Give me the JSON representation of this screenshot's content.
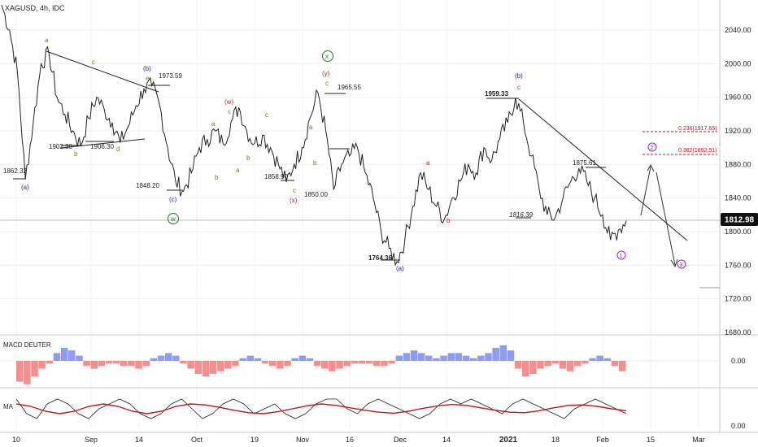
{
  "symbol_header": "XAGUSD, 4h, IDC",
  "colors": {
    "price_line": "#222222",
    "trend_line": "#222222",
    "wave_blue": "#2a2ab0",
    "wave_red": "#d02020",
    "wave_olive": "#7a7a1a",
    "wave_green": "#2a7a2a",
    "wave_purple": "#a020d0",
    "fib_red": "#c02030",
    "macd_pos": "#6a7af0",
    "macd_neg": "#f06a6a",
    "ma_red": "#c01818",
    "last_price_bg": "#111111",
    "grid": "#e8e8e8",
    "divider": "#c8c8c8"
  },
  "chart_data": [
    {
      "type": "line",
      "title": "XAGUSD, 4h, IDC",
      "xlabel": "",
      "ylabel": "",
      "ylim": [
        1660,
        2080
      ],
      "x_ticks": [
        "10",
        "Sep",
        "14",
        "Oct",
        "19",
        "Nov",
        "16",
        "Dec",
        "14",
        "2021",
        "18",
        "Feb",
        "15",
        "Mar"
      ],
      "y_ticks": [
        "2040.00",
        "2000.00",
        "1960.00",
        "1920.00",
        "1880.00",
        "1840.00",
        "1800.00",
        "1760.00",
        "1720.00",
        "1680.00"
      ],
      "last_price": "1812.98",
      "series": [
        {
          "values": [
            2070,
            2040,
            1990,
            1862.32,
            1930,
            2000,
            2012,
            1960,
            1940,
            1920,
            1903,
            1935,
            1960,
            1945,
            1930,
            1906,
            1925,
            1950,
            1970,
            1973.59,
            1950,
            1900,
            1860,
            1848.2,
            1870,
            1900,
            1910,
            1920,
            1905,
            1930,
            1948,
            1920,
            1905,
            1915,
            1900,
            1880,
            1858.9,
            1880,
            1900,
            1935,
            1965.55,
            1920,
            1850,
            1880,
            1890,
            1900,
            1870,
            1840,
            1800,
            1780,
            1764.36,
            1790,
            1830,
            1870,
            1850,
            1830,
            1815,
            1840,
            1860,
            1880,
            1870,
            1900,
            1885,
            1910,
            1930,
            1959.33,
            1930,
            1890,
            1850,
            1820,
            1816.39,
            1840,
            1860,
            1875.61,
            1860,
            1840,
            1820,
            1790,
            1802,
            1812.98
          ]
        }
      ],
      "annotations": [
        {
          "text": "1862.32",
          "value": 1862.32
        },
        {
          "text": "(a)"
        },
        {
          "text": "a"
        },
        {
          "text": "1902.30",
          "value": 1902.3
        },
        {
          "text": "b"
        },
        {
          "text": "c"
        },
        {
          "text": "1906.30",
          "value": 1906.3
        },
        {
          "text": "d"
        },
        {
          "text": "(b)"
        },
        {
          "text": "e"
        },
        {
          "text": "1973.59",
          "value": 1973.59
        },
        {
          "text": "1848.20",
          "value": 1848.2
        },
        {
          "text": "(c)"
        },
        {
          "text": "w"
        },
        {
          "text": "a"
        },
        {
          "text": "b"
        },
        {
          "text": "(w)"
        },
        {
          "text": "c"
        },
        {
          "text": "a"
        },
        {
          "text": "b"
        },
        {
          "text": "c"
        },
        {
          "text": "1858.90",
          "value": 1858.9
        },
        {
          "text": "c"
        },
        {
          "text": "(x)"
        },
        {
          "text": "x"
        },
        {
          "text": "(y)"
        },
        {
          "text": "c"
        },
        {
          "text": "a"
        },
        {
          "text": "b"
        },
        {
          "text": "1965.55",
          "value": 1965.55
        },
        {
          "text": "1850.00",
          "value": 1850
        },
        {
          "text": "1764.36",
          "value": 1764.36
        },
        {
          "text": "(a)"
        },
        {
          "text": "a"
        },
        {
          "text": "b"
        },
        {
          "text": "1959.33",
          "value": 1959.33
        },
        {
          "text": "(b)"
        },
        {
          "text": "c"
        },
        {
          "text": "1816.39",
          "value": 1816.39
        },
        {
          "text": "1875.61",
          "value": 1875.61
        },
        {
          "text": "1"
        },
        {
          "text": "2"
        },
        {
          "text": "3"
        },
        {
          "text": "0.236(1917.65)",
          "value": 1917.65
        },
        {
          "text": "0.382(1892.51)",
          "value": 1892.51
        }
      ]
    },
    {
      "type": "bar",
      "title": "MACD DEUTER",
      "y_ticks": [
        "0.00"
      ],
      "series": [
        {
          "values": [
            -8,
            -9,
            -6,
            -3,
            -1,
            3,
            5,
            4,
            2,
            -2,
            -3,
            -2,
            -1,
            -1,
            -2,
            -2,
            -3,
            -2,
            1,
            2,
            3,
            2,
            -1,
            -3,
            -5,
            -6,
            -5,
            -4,
            -3,
            -2,
            1,
            2,
            1,
            -1,
            -2,
            -3,
            -2,
            1,
            2,
            1,
            -2,
            -3,
            -4,
            -3,
            -2,
            -1,
            -1,
            -1,
            -2,
            -2,
            -1,
            2,
            3,
            4,
            3,
            2,
            1,
            2,
            3,
            3,
            2,
            1,
            2,
            3,
            5,
            6,
            4,
            -3,
            -6,
            -5,
            -3,
            -2,
            -1,
            -3,
            -4,
            -2,
            -1,
            1,
            2,
            1,
            -2,
            -4
          ]
        }
      ]
    },
    {
      "type": "line",
      "title": "MA",
      "y_ticks": [
        "0.00"
      ],
      "series": [
        {
          "values": [
            2,
            -1,
            -2,
            1,
            2,
            1,
            -1,
            -2,
            0,
            1,
            2,
            1,
            -1,
            -2,
            -1,
            1,
            2,
            0,
            -2,
            -1,
            1,
            2,
            1,
            -1,
            0,
            1,
            -1,
            -2,
            -1,
            1,
            2,
            2,
            0,
            -1,
            1,
            2,
            1,
            0,
            -1,
            -2,
            -1,
            1,
            2,
            1,
            2,
            1,
            0,
            -1,
            1,
            2,
            1,
            0,
            -1,
            -2,
            0,
            1,
            2,
            1,
            0,
            -1
          ]
        },
        {
          "values": [
            1,
            0.5,
            -0.5,
            -1,
            -0.5,
            0.5,
            1,
            0.5,
            -0.5,
            -1,
            -0.5,
            0.5,
            1,
            0.8,
            0.3,
            -0.3,
            -0.8,
            -1,
            -0.6,
            0,
            0.6,
            1,
            0.7,
            0.2,
            -0.3,
            -0.7,
            -0.9,
            -0.5,
            0.1,
            0.6,
            0.9,
            0.7,
            0.2,
            -0.3,
            -0.7,
            -0.8,
            -0.4,
            0.2,
            0.7,
            0.8,
            0.5,
            0,
            -0.4
          ]
        }
      ]
    }
  ]
}
